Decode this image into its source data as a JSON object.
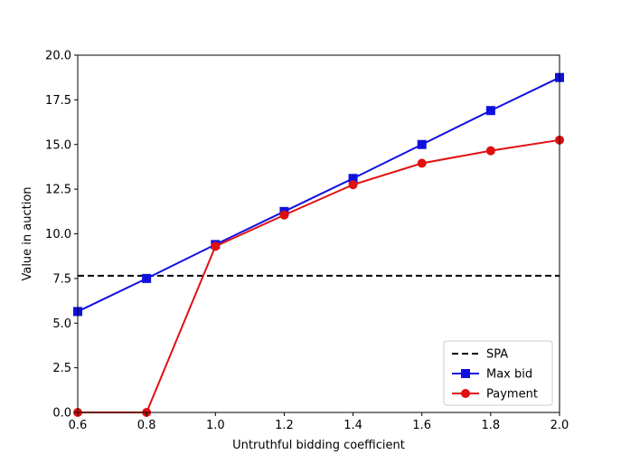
{
  "chart_data": {
    "type": "line",
    "xlabel": "Untruthful bidding coefficient",
    "ylabel": "Value in auction",
    "xlim": [
      0.6,
      2.0
    ],
    "ylim": [
      0.0,
      20.0
    ],
    "xticks": [
      "0.6",
      "0.8",
      "1.0",
      "1.2",
      "1.4",
      "1.6",
      "1.8",
      "2.0"
    ],
    "yticks": [
      "0.0",
      "2.5",
      "5.0",
      "7.5",
      "10.0",
      "12.5",
      "15.0",
      "17.5",
      "20.0"
    ],
    "grid": false,
    "legend_position": "lower-right",
    "x": [
      0.6,
      0.8,
      1.0,
      1.2,
      1.4,
      1.6,
      1.8,
      2.0
    ],
    "reference_lines": [
      {
        "name": "SPA",
        "y": 7.65,
        "style": "dashed",
        "color": "#000000"
      }
    ],
    "series": [
      {
        "name": "Max bid",
        "color": "#1010e0",
        "marker": "square",
        "values": [
          5.65,
          7.5,
          9.4,
          11.25,
          13.1,
          15.0,
          16.9,
          18.75
        ]
      },
      {
        "name": "Payment",
        "color": "#e01010",
        "marker": "circle",
        "values": [
          0.0,
          0.0,
          9.3,
          11.05,
          12.75,
          13.95,
          14.65,
          15.25
        ]
      }
    ]
  }
}
